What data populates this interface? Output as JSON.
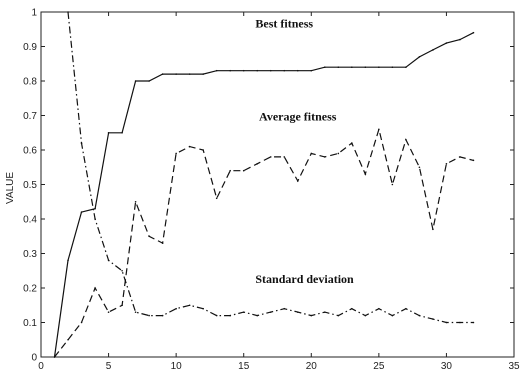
{
  "chart_data": {
    "type": "line",
    "title": "",
    "xlabel": "",
    "ylabel": "VALUE",
    "xlim": [
      0,
      35
    ],
    "ylim": [
      0,
      1
    ],
    "x_ticks": [
      0,
      5,
      10,
      15,
      20,
      25,
      30,
      35
    ],
    "y_ticks": [
      0,
      0.1,
      0.2,
      0.3,
      0.4,
      0.5,
      0.6,
      0.7,
      0.8,
      0.9,
      1
    ],
    "grid": false,
    "legend": "none",
    "series": [
      {
        "style": "solid",
        "x": [
          1,
          2,
          3,
          4,
          5,
          6,
          7,
          8,
          9,
          10,
          11,
          12,
          13,
          14,
          15,
          16,
          17,
          18,
          19,
          20,
          21,
          22,
          23,
          24,
          25,
          26,
          27,
          28,
          29,
          30,
          31,
          32
        ],
        "y": [
          0.0,
          0.28,
          0.42,
          0.43,
          0.65,
          0.65,
          0.8,
          0.8,
          0.82,
          0.82,
          0.82,
          0.82,
          0.83,
          0.83,
          0.83,
          0.83,
          0.83,
          0.83,
          0.83,
          0.83,
          0.84,
          0.84,
          0.84,
          0.84,
          0.84,
          0.84,
          0.84,
          0.87,
          0.89,
          0.91,
          0.92,
          0.94
        ]
      },
      {
        "style": "dashed",
        "x": [
          1,
          2,
          3,
          4,
          5,
          6,
          7,
          8,
          9,
          10,
          11,
          12,
          13,
          14,
          15,
          16,
          17,
          18,
          19,
          20,
          21,
          22,
          23,
          24,
          25,
          26,
          27,
          28,
          29,
          30,
          31,
          32
        ],
        "y": [
          0.0,
          0.05,
          0.1,
          0.2,
          0.13,
          0.15,
          0.45,
          0.35,
          0.33,
          0.59,
          0.61,
          0.6,
          0.46,
          0.54,
          0.54,
          0.56,
          0.58,
          0.58,
          0.51,
          0.59,
          0.58,
          0.59,
          0.62,
          0.53,
          0.66,
          0.5,
          0.63,
          0.55,
          0.37,
          0.56,
          0.58,
          0.57
        ]
      },
      {
        "style": "dashdot",
        "x": [
          2,
          3,
          4,
          5,
          6,
          7,
          8,
          9,
          10,
          11,
          12,
          13,
          14,
          15,
          16,
          17,
          18,
          19,
          20,
          21,
          22,
          23,
          24,
          25,
          26,
          27,
          28,
          29,
          30,
          31,
          32
        ],
        "y": [
          1.0,
          0.62,
          0.4,
          0.28,
          0.25,
          0.13,
          0.12,
          0.12,
          0.14,
          0.15,
          0.14,
          0.12,
          0.12,
          0.13,
          0.12,
          0.13,
          0.14,
          0.13,
          0.12,
          0.13,
          0.12,
          0.14,
          0.12,
          0.14,
          0.12,
          0.14,
          0.12,
          0.11,
          0.1,
          0.1,
          0.1
        ]
      }
    ],
    "annotations": [
      {
        "text": "Best fitness",
        "x": 18,
        "y": 0.955
      },
      {
        "text": "Average fitness",
        "x": 19,
        "y": 0.685
      },
      {
        "text": "Standard deviation",
        "x": 19.5,
        "y": 0.215
      }
    ]
  }
}
